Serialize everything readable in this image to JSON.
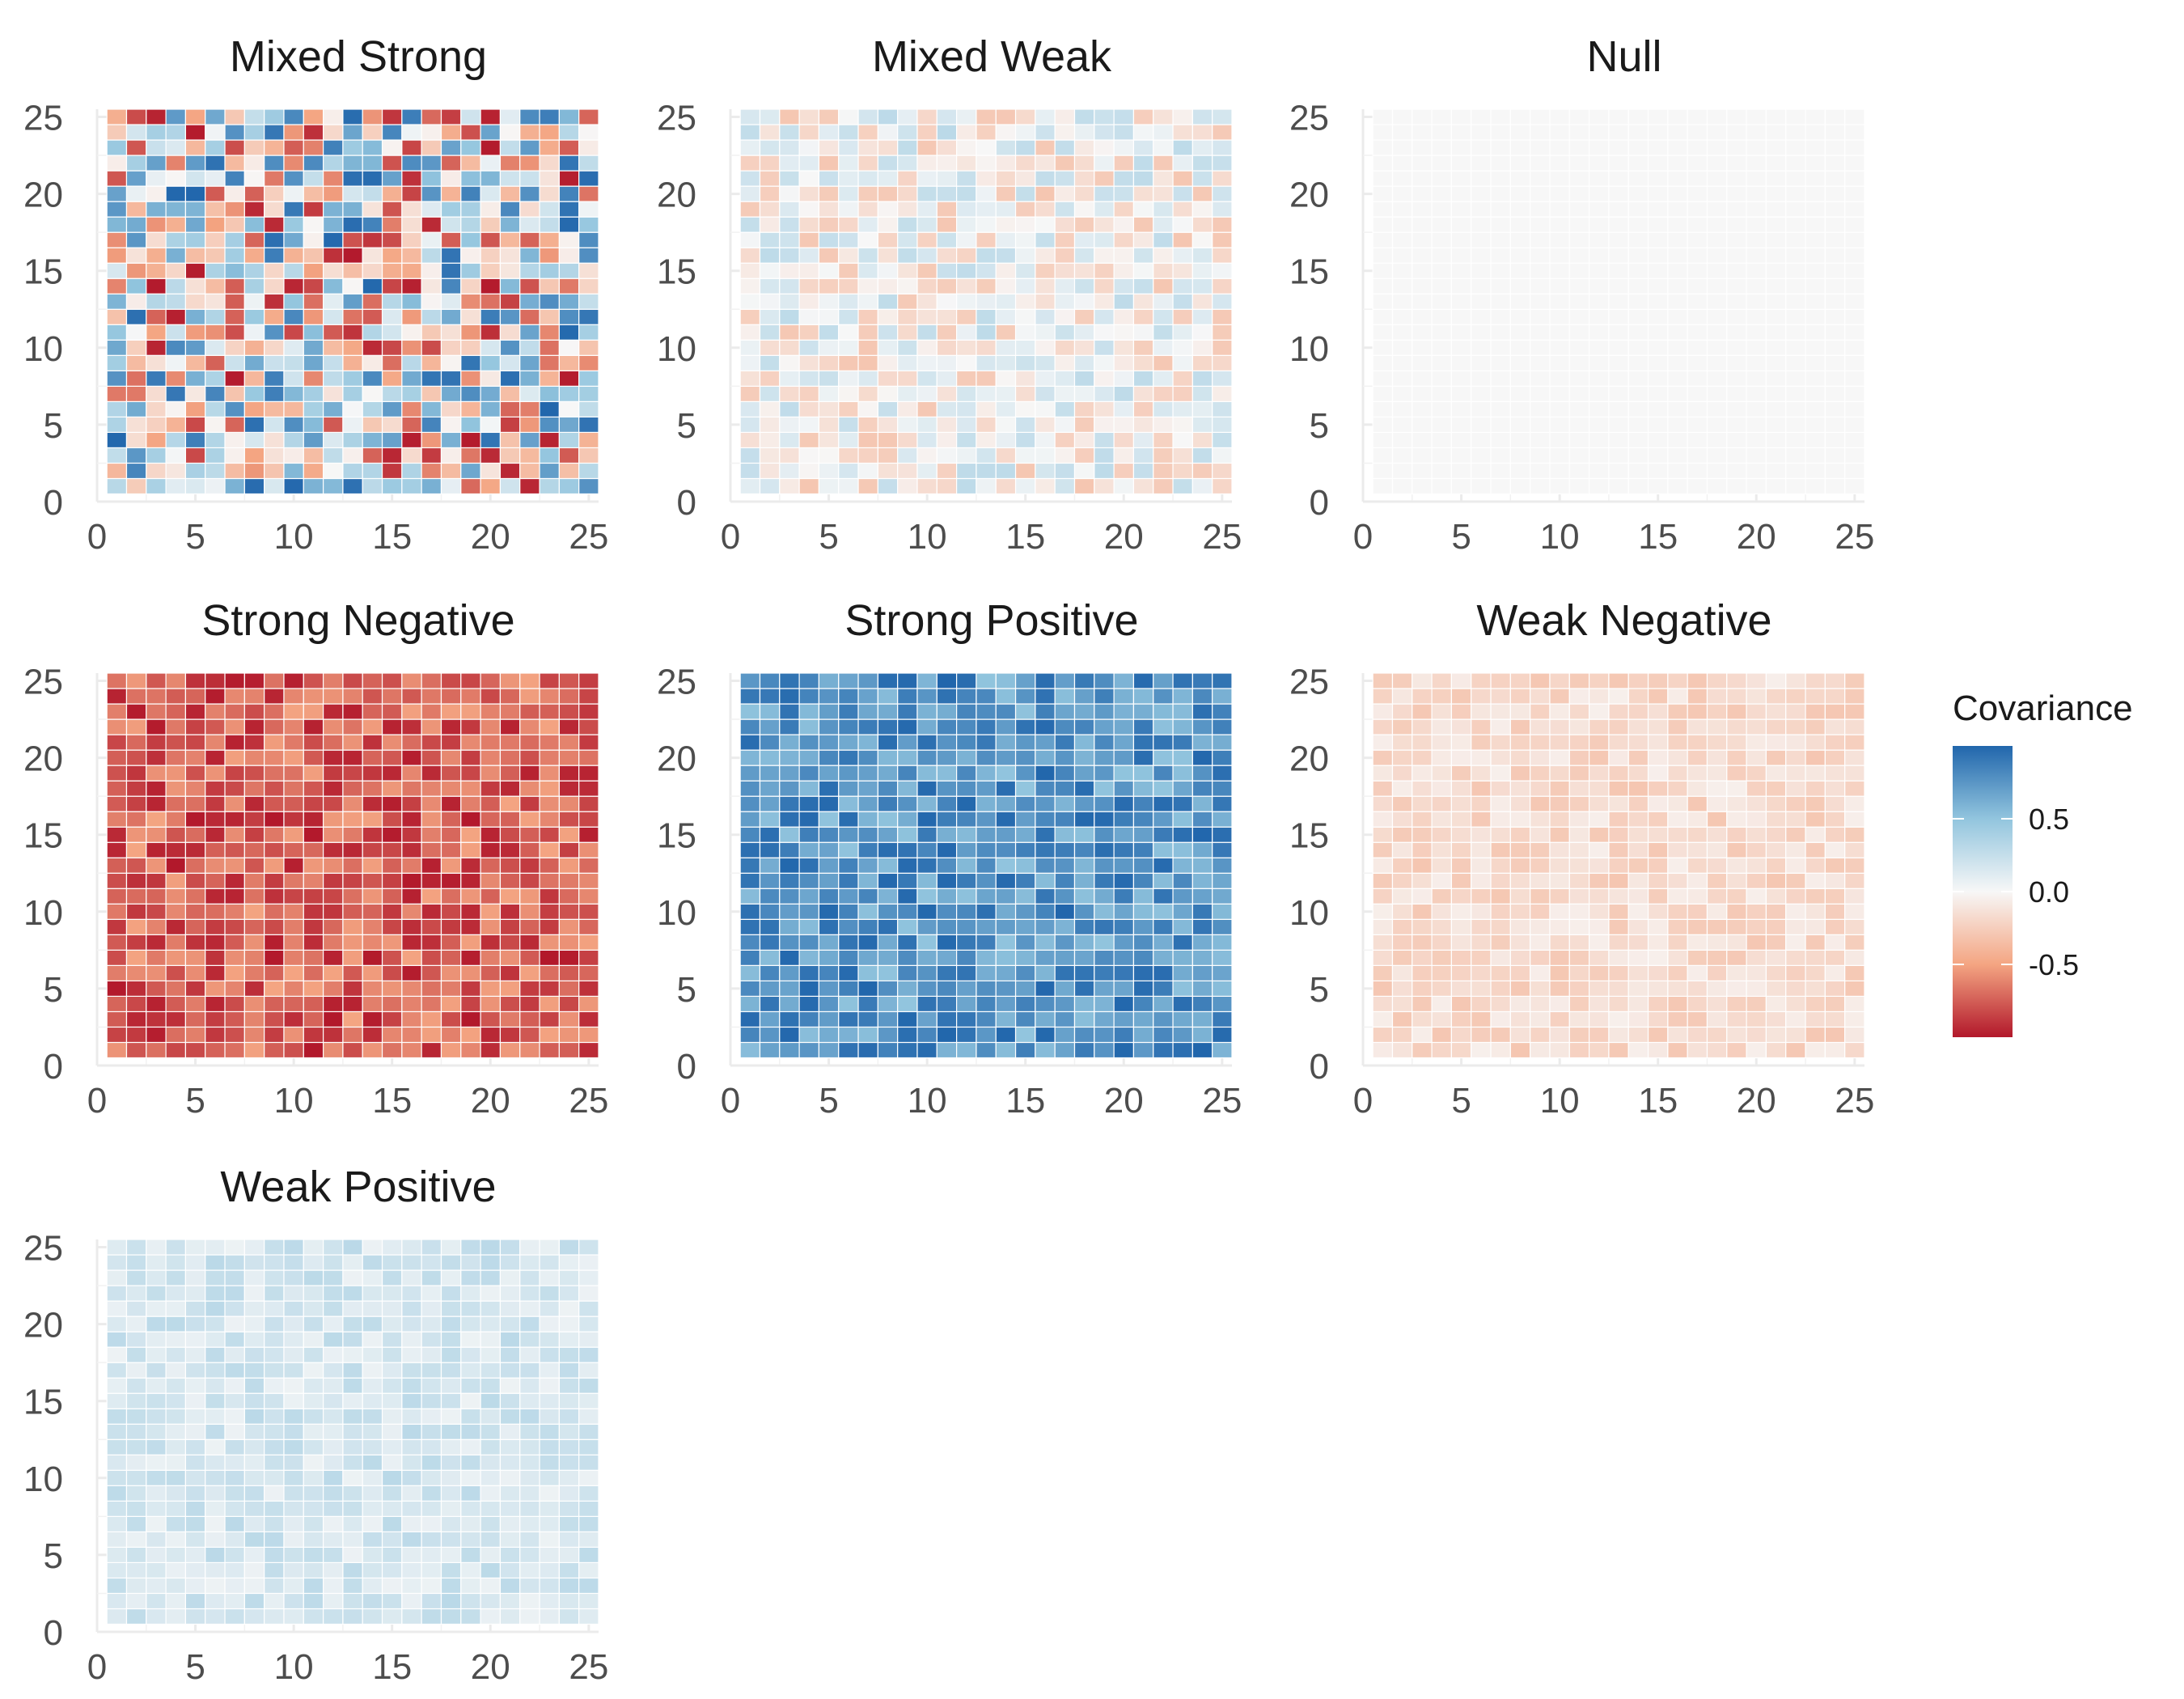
{
  "chart_data": {
    "type": "heatmap",
    "layout": "faceted 3-column grid",
    "grid": true,
    "colorscale": {
      "name": "RdBu diverging",
      "low_color": "#b2182b",
      "mid_color": "#f7f7f7",
      "high_color": "#2166ac",
      "limits": [
        -1,
        1
      ]
    },
    "legend": {
      "title": "Covariance",
      "position": "right",
      "ticks": [
        0.5,
        0.0,
        -0.5
      ],
      "tick_labels": [
        "0.5",
        "0.0",
        "-0.5"
      ]
    },
    "x_ticks": [
      0,
      5,
      10,
      15,
      20,
      25
    ],
    "y_ticks": [
      0,
      5,
      10,
      15,
      20,
      25
    ],
    "xlim": [
      0,
      25.5
    ],
    "ylim": [
      0,
      25.5
    ],
    "grid_size": 25,
    "panels": [
      {
        "title": "Mixed Strong",
        "value_range": [
          -1.0,
          1.0
        ]
      },
      {
        "title": "Mixed Weak",
        "value_range": [
          -0.3,
          0.3
        ]
      },
      {
        "title": "Null",
        "value_range": [
          0.0,
          0.0
        ]
      },
      {
        "title": "Strong Negative",
        "value_range": [
          -1.0,
          -0.5
        ]
      },
      {
        "title": "Strong Positive",
        "value_range": [
          0.5,
          1.0
        ]
      },
      {
        "title": "Weak Negative",
        "value_range": [
          -0.3,
          -0.05
        ]
      },
      {
        "title": "Weak Positive",
        "value_range": [
          0.05,
          0.3
        ]
      }
    ]
  }
}
